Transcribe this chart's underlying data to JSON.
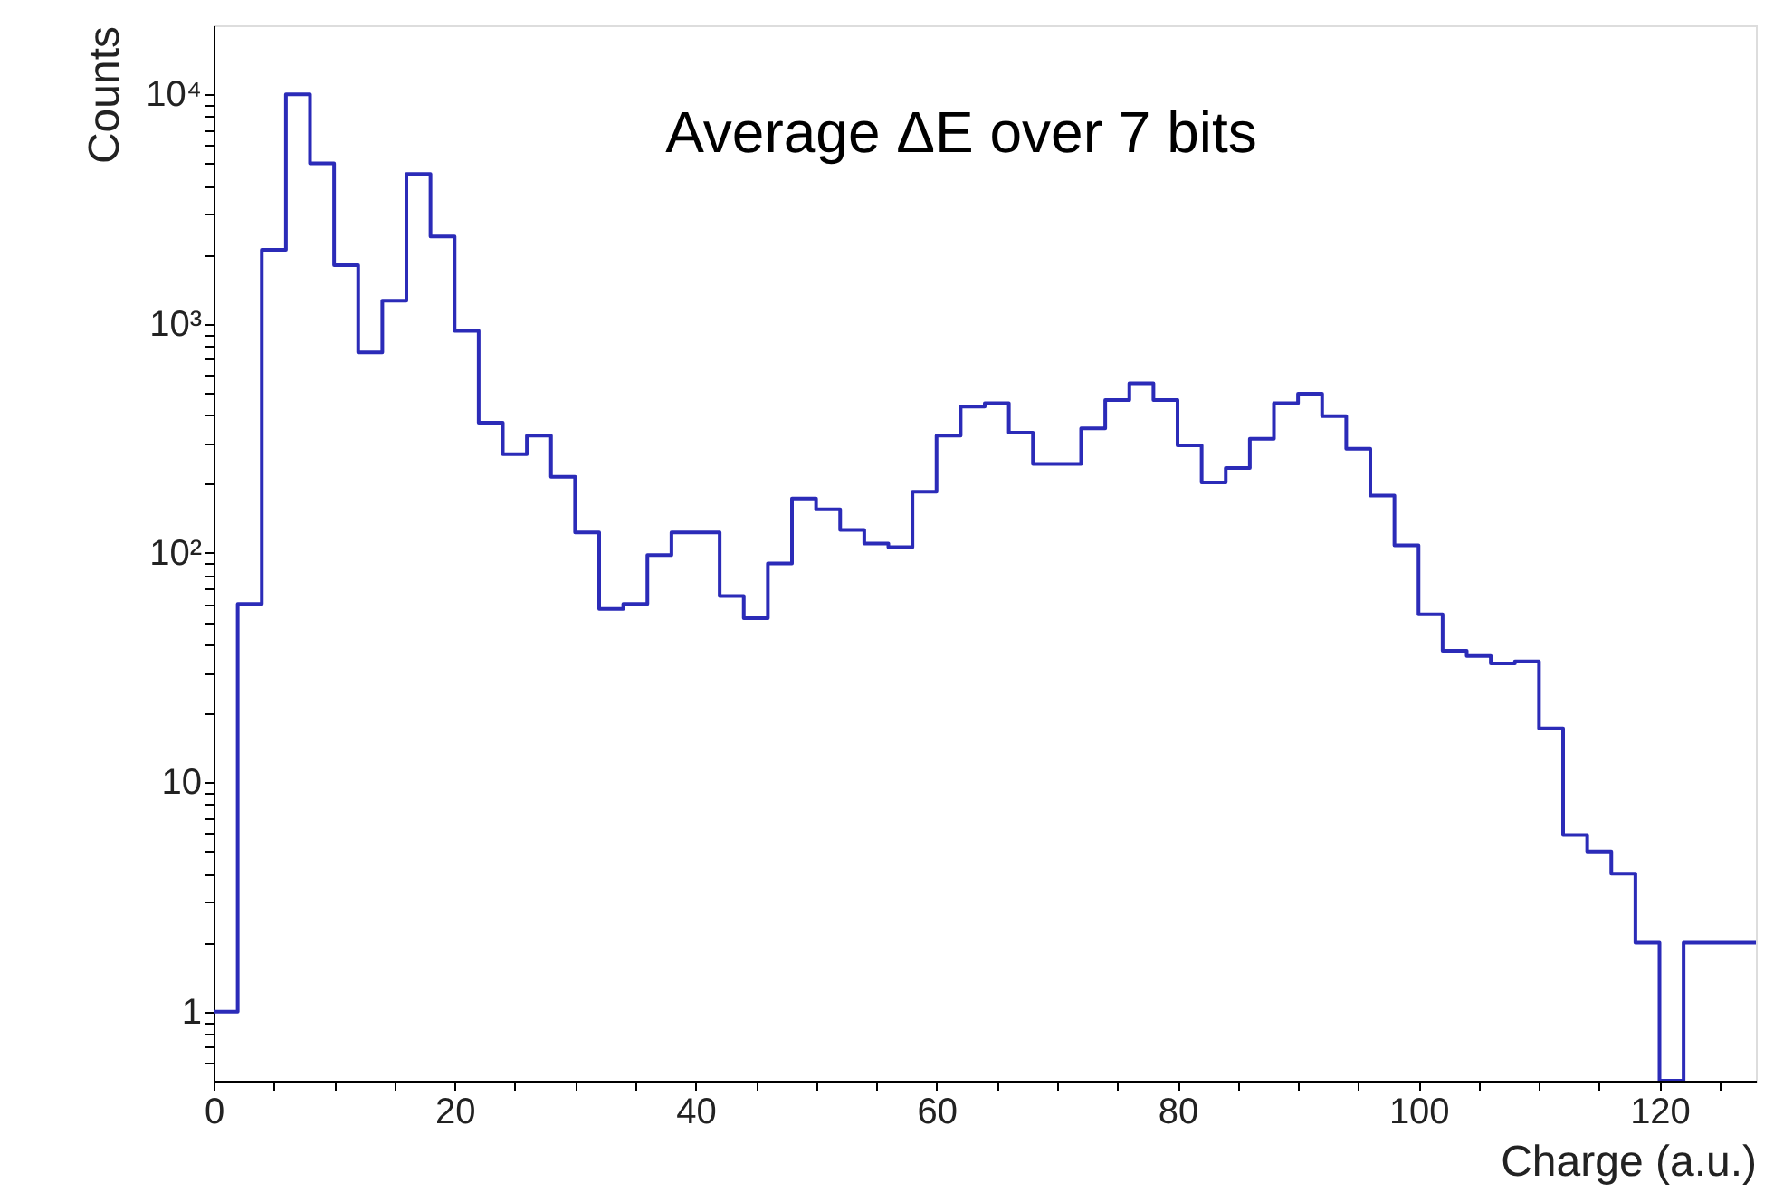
{
  "chart_data": {
    "type": "histogram",
    "title": "Average ΔE over 7 bits",
    "xlabel": "Charge (a.u.)",
    "ylabel": "Counts",
    "log": "y",
    "grid": false,
    "series": [
      {
        "color": "#2b2bb8",
        "values": [
          1,
          60,
          2100,
          10000,
          5000,
          1800,
          750,
          1260,
          4500,
          2400,
          930,
          370,
          270,
          325,
          215,
          123,
          57,
          60,
          98,
          123,
          123,
          65,
          52,
          90,
          173,
          155,
          126,
          110,
          106,
          185,
          325,
          435,
          450,
          335,
          245,
          245,
          350,
          465,
          550,
          465,
          295,
          203,
          235,
          315,
          450,
          495,
          395,
          285,
          178,
          108,
          54,
          37.5,
          35.6,
          33,
          33.7,
          17.2,
          5.9,
          5.0,
          4.0,
          2.0,
          null,
          2,
          2,
          2
        ]
      }
    ],
    "bins": [
      0,
      2,
      4,
      6,
      8,
      10,
      12,
      14,
      16,
      18,
      20,
      22,
      24,
      26,
      28,
      30,
      32,
      34,
      36,
      38,
      40,
      42,
      44,
      46,
      48,
      50,
      52,
      54,
      56,
      58,
      60,
      62,
      64,
      66,
      68,
      70,
      72,
      74,
      76,
      78,
      80,
      82,
      84,
      86,
      88,
      90,
      92,
      94,
      96,
      98,
      100,
      102,
      104,
      106,
      108,
      110,
      112,
      114,
      116,
      118,
      120,
      122,
      124,
      126,
      128
    ],
    "xlim": [
      0,
      128
    ],
    "xticks": [
      0,
      {
        "value": 5,
        "label": null
      },
      {
        "value": 10,
        "label": null
      },
      {
        "value": 15,
        "label": null
      },
      20,
      {
        "value": 25,
        "label": null
      },
      {
        "value": 30,
        "label": null
      },
      {
        "value": 35,
        "label": null
      },
      40,
      {
        "value": 45,
        "label": null
      },
      {
        "value": 50,
        "label": null
      },
      {
        "value": 55,
        "label": null
      },
      60,
      {
        "value": 65,
        "label": null
      },
      {
        "value": 70,
        "label": null
      },
      {
        "value": 75,
        "label": null
      },
      80,
      {
        "value": 85,
        "label": null
      },
      {
        "value": 90,
        "label": null
      },
      {
        "value": 95,
        "label": null
      },
      100,
      {
        "value": 105,
        "label": null
      },
      {
        "value": 110,
        "label": null
      },
      {
        "value": 115,
        "label": null
      },
      120,
      {
        "value": 125,
        "label": null
      }
    ],
    "ylim": [
      0.5,
      20000
    ],
    "yticks": [
      {
        "value": 0.6,
        "label": null
      },
      {
        "value": 0.7,
        "label": null
      },
      {
        "value": 0.8,
        "label": null
      },
      {
        "value": 0.9,
        "label": null
      },
      1,
      {
        "value": 2,
        "label": null
      },
      {
        "value": 3,
        "label": null
      },
      {
        "value": 4,
        "label": null
      },
      {
        "value": 5,
        "label": null
      },
      {
        "value": 6,
        "label": null
      },
      {
        "value": 7,
        "label": null
      },
      {
        "value": 8,
        "label": null
      },
      {
        "value": 9,
        "label": null
      },
      10,
      {
        "value": 20,
        "label": null
      },
      {
        "value": 30,
        "label": null
      },
      {
        "value": 40,
        "label": null
      },
      {
        "value": 50,
        "label": null
      },
      {
        "value": 60,
        "label": null
      },
      {
        "value": 70,
        "label": null
      },
      {
        "value": 80,
        "label": null
      },
      {
        "value": 90,
        "label": null
      },
      {
        "value": 100,
        "label": "10²"
      },
      {
        "value": 200,
        "label": null
      },
      {
        "value": 300,
        "label": null
      },
      {
        "value": 400,
        "label": null
      },
      {
        "value": 500,
        "label": null
      },
      {
        "value": 600,
        "label": null
      },
      {
        "value": 700,
        "label": null
      },
      {
        "value": 800,
        "label": null
      },
      {
        "value": 900,
        "label": null
      },
      {
        "value": 1000,
        "label": "10³"
      },
      {
        "value": 2000,
        "label": null
      },
      {
        "value": 3000,
        "label": null
      },
      {
        "value": 4000,
        "label": null
      },
      {
        "value": 5000,
        "label": null
      },
      {
        "value": 6000,
        "label": null
      },
      {
        "value": 7000,
        "label": null
      },
      {
        "value": 8000,
        "label": null
      },
      {
        "value": 9000,
        "label": null
      },
      {
        "value": 10000,
        "label": "10⁴"
      }
    ]
  }
}
